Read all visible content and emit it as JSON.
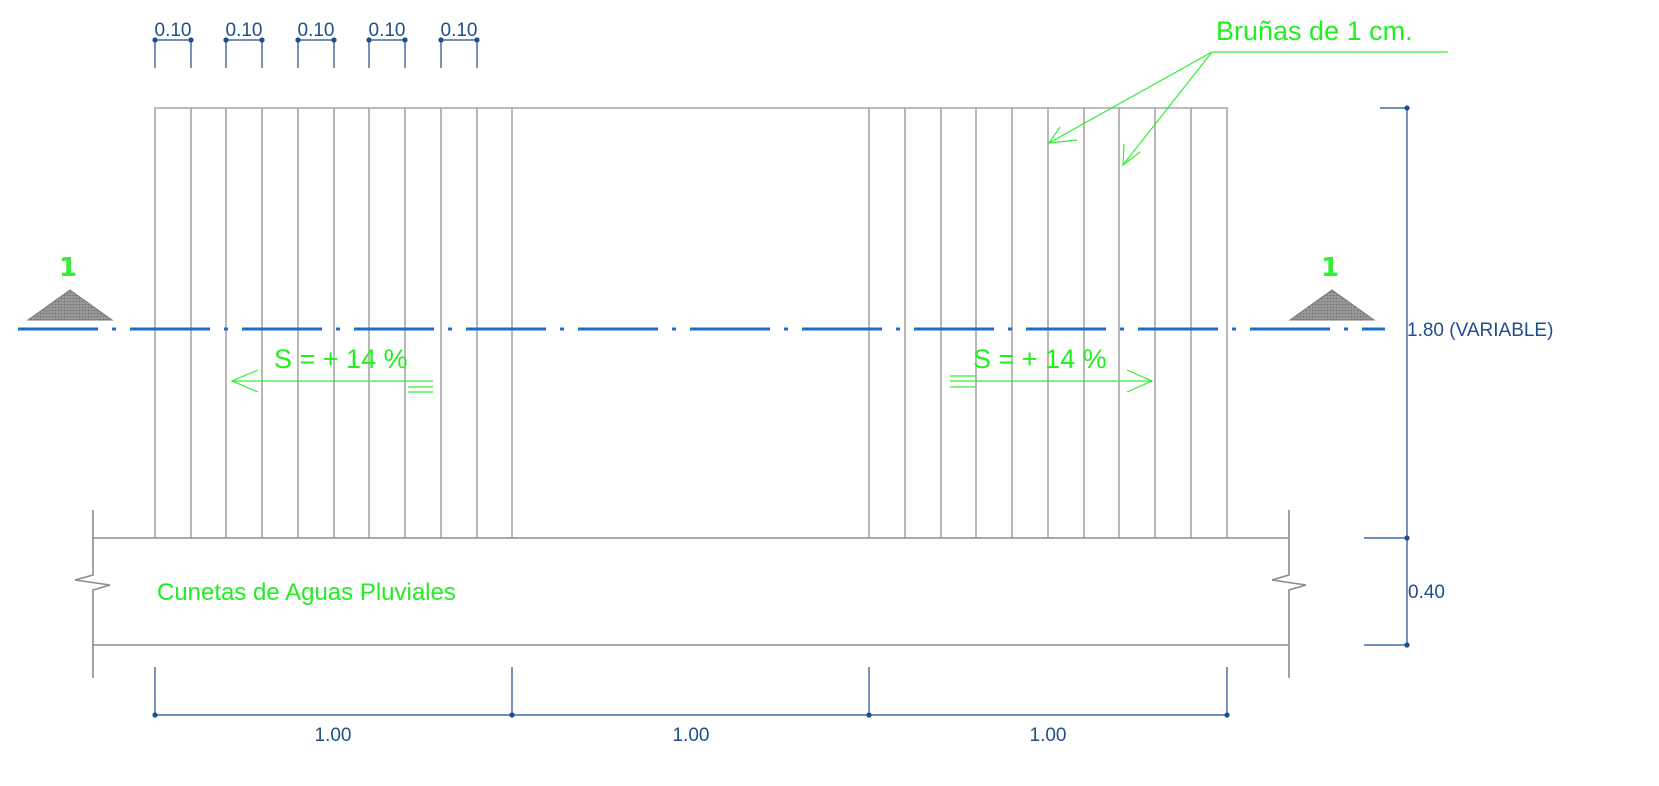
{
  "drawing": {
    "top_dims": [
      "0.10",
      "0.10",
      "0.10",
      "0.10",
      "0.10"
    ],
    "note_grooves": "Bruñas de 1 cm.",
    "section_label_left": "1",
    "section_label_right": "1",
    "slope_left": "S = + 14 %",
    "slope_right": "S = + 14 %",
    "gutter_label": "Cunetas de Aguas Pluviales",
    "height_dim": "1.80 (VARIABLE)",
    "base_dim": "0.40",
    "bottom_dims": [
      "1.00",
      "1.00",
      "1.00"
    ]
  },
  "colors": {
    "dimension": "#1f4e8c",
    "annotation": "#22ee22",
    "axis": "#1a6fd0",
    "outline": "#a6a6a6"
  }
}
